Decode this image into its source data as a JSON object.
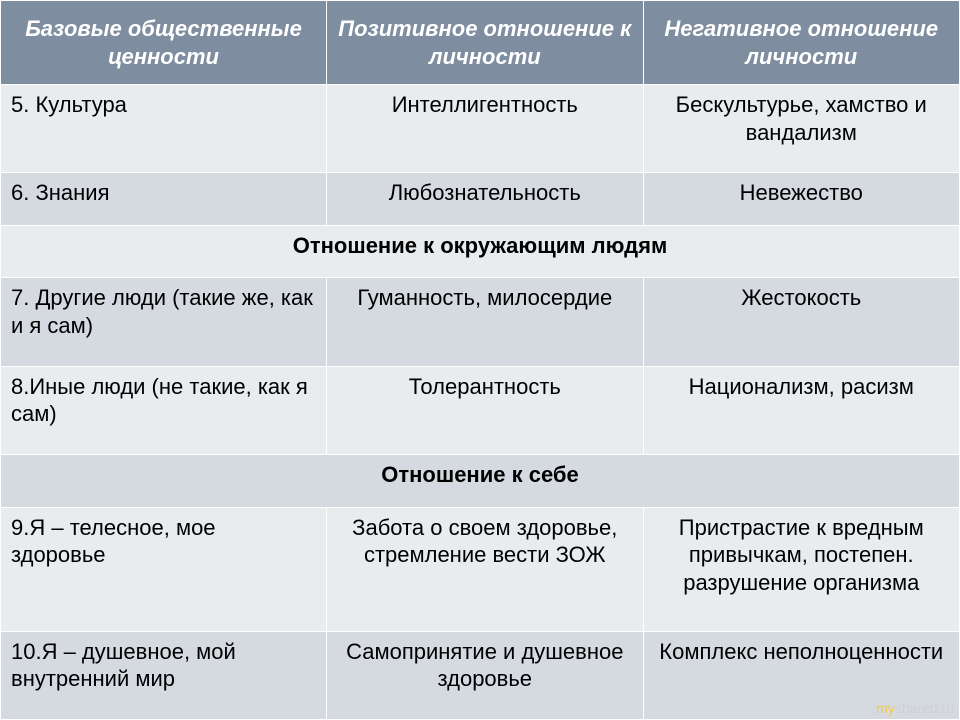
{
  "table": {
    "type": "table",
    "background_color": "#ffffff",
    "border_color": "#ffffff",
    "header_bg": "#7e8da0",
    "header_text_color": "#ffffff",
    "band_a_bg": "#e9ecef",
    "band_b_bg": "#d5dae1",
    "body_text_color": "#000000",
    "font_family": "Verdana",
    "header_font_style": "italic bold",
    "header_fontsize_pt": 18,
    "body_fontsize_pt": 17,
    "col_widths_pct": [
      34,
      33,
      33
    ],
    "col_align": [
      "left",
      "center",
      "center"
    ],
    "columns": [
      "Базовые общественные ценности",
      "Позитивное отношение к личности",
      "Негативное отношение личности"
    ],
    "rows": [
      {
        "kind": "data",
        "band": "a",
        "cells": [
          "5. Культура",
          "Интеллигентность",
          "Бескультурье, хамство и вандализм"
        ]
      },
      {
        "kind": "data",
        "band": "b",
        "cells": [
          "6. Знания",
          "Любознательность",
          "Невежество"
        ]
      },
      {
        "kind": "section",
        "band": "a",
        "label": "Отношение к окружающим людям"
      },
      {
        "kind": "data",
        "band": "b",
        "cells": [
          "7. Другие люди (такие же, как и я сам)",
          "Гуманность, милосердие",
          "Жестокость"
        ]
      },
      {
        "kind": "data",
        "band": "a",
        "cells": [
          "8.Иные люди (не такие, как я сам)",
          "Толерантность",
          "Национализм, расизм"
        ]
      },
      {
        "kind": "section",
        "band": "b",
        "label": "Отношение к себе"
      },
      {
        "kind": "data",
        "band": "a",
        "cells": [
          "9.Я – телесное, мое здоровье",
          "Забота о своем здоровье, стремление вести ЗОЖ",
          "Пристрастие к вред­ным привычкам, постепен. разрушение организма"
        ]
      },
      {
        "kind": "data",
        "band": "b",
        "cells": [
          "10.Я – душевное, мой внутренний мир",
          "Самопринятие и душевное здоровье",
          "Комплекс неполноценности"
        ]
      }
    ]
  },
  "watermark": {
    "prefix": "my",
    "suffix": "shared.ru"
  }
}
